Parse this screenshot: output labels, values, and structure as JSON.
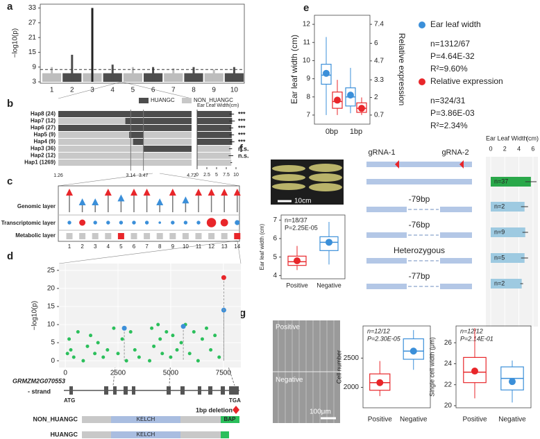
{
  "panels": [
    "a",
    "b",
    "c",
    "d",
    "e",
    "f",
    "g"
  ],
  "panel_a": {
    "type": "manhattan",
    "ylabel": "−log10(p)",
    "ylim": [
      3,
      34
    ],
    "yticks": [
      3,
      9,
      15,
      21,
      27,
      33
    ],
    "categories": [
      1,
      2,
      3,
      4,
      5,
      6,
      7,
      8,
      9,
      10
    ],
    "values": [
      9,
      14,
      33,
      10,
      9,
      9,
      8.5,
      9,
      8,
      9
    ],
    "threshold": 8,
    "colors": [
      "#bdbdbd",
      "#4d4d4d"
    ]
  },
  "panel_b": {
    "legend": [
      "HUANGC",
      "NON_HUANGC"
    ],
    "legend_colors": [
      "#4d4d4d",
      "#c8c8c8"
    ],
    "title": "Ear Leaf Width(cm)",
    "haplotypes": [
      "Hap8 (24)",
      "Hap7 (12)",
      "Hap6 (27)",
      "Hap5 (9)",
      "Hap4 (9)",
      "Hap3 (36)",
      "Hap2 (12)",
      "Hap1 (1269)"
    ],
    "segments": [
      [
        [
          1.26,
          4.72,
          0
        ]
      ],
      [
        [
          1.26,
          3.0,
          1
        ],
        [
          3.0,
          4.72,
          0
        ]
      ],
      [
        [
          1.26,
          4.72,
          0
        ]
      ],
      [
        [
          1.26,
          3.1,
          1
        ],
        [
          3.1,
          3.47,
          0
        ],
        [
          3.47,
          4.72,
          1
        ]
      ],
      [
        [
          1.26,
          3.2,
          1
        ],
        [
          3.2,
          3.47,
          0
        ],
        [
          3.47,
          4.72,
          1
        ]
      ],
      [
        [
          1.26,
          3.47,
          1
        ],
        [
          3.47,
          4.72,
          0
        ]
      ],
      [
        [
          1.26,
          4.72,
          1
        ]
      ],
      [
        [
          1.26,
          4.72,
          1
        ]
      ]
    ],
    "xlim": [
      1.26,
      4.72
    ],
    "positions": [
      1.26,
      3.14,
      3.47,
      4.72
    ],
    "values": [
      8.9,
      9.0,
      8.8,
      8.9,
      9.0,
      8.6,
      8.7,
      8.8
    ],
    "errors": [
      0.6,
      0.7,
      0.5,
      0.6,
      0.6,
      0.4,
      0.6,
      0.2
    ],
    "bar_colors": [
      0,
      0,
      0,
      0,
      0,
      1,
      1,
      1
    ],
    "significance": [
      "***",
      "***",
      "***",
      "***",
      "***",
      "n.s.",
      "n.s.",
      ""
    ],
    "bar_xlim": [
      0,
      10
    ],
    "bar_xticks": [
      0,
      2.5,
      5,
      7.5,
      10
    ]
  },
  "panel_c": {
    "rows": [
      "Genomic layer",
      "Transcriptomic layer",
      "Metabolic layer"
    ],
    "columns": [
      1,
      2,
      3,
      4,
      5,
      6,
      7,
      8,
      9,
      10,
      11,
      12,
      13,
      14
    ],
    "genomic_size": [
      1,
      0.5,
      0.5,
      1,
      0.7,
      1,
      1,
      0.5,
      1,
      0.6,
      1,
      1,
      1,
      1
    ],
    "genomic_color": [
      "#e8262a",
      "#3b8fd9",
      "#3b8fd9",
      "#e8262a",
      "#3b8fd9",
      "#e8262a",
      "#e8262a",
      "#3b8fd9",
      "#e8262a",
      "#3b8fd9",
      "#e8262a",
      "#e8262a",
      "#e8262a",
      "#e8262a"
    ],
    "transcriptomic_size": [
      0.6,
      1,
      0.6,
      0.6,
      0.6,
      0.6,
      0.6,
      0.4,
      0.6,
      0.6,
      0.6,
      1.5,
      1.2,
      0.8
    ],
    "metabolic_color": [
      "#c8c8c8",
      "#c8c8c8",
      "#c8c8c8",
      "#c8c8c8",
      "#e8262a",
      "#c8c8c8",
      "#c8c8c8",
      "#c8c8c8",
      "#c8c8c8",
      "#c8c8c8",
      "#c8c8c8",
      "#c8c8c8",
      "#c8c8c8",
      "#e8262a"
    ]
  },
  "panel_d": {
    "type": "scatter",
    "ylabel": "−log10(p)",
    "xlim": [
      -300,
      8330
    ],
    "xticks": [
      0,
      2500,
      5000,
      7500
    ],
    "ylim": [
      -1.5,
      26.5
    ],
    "yticks": [
      0,
      5,
      10,
      15,
      20,
      25
    ],
    "series": [
      {
        "color": "#2bbf5b",
        "x": [
          100,
          180,
          260,
          400,
          600,
          850,
          1050,
          1200,
          1400,
          1550,
          1800,
          2000,
          2300,
          2500,
          2700,
          2900,
          3100,
          3300,
          3500,
          4000,
          4100,
          4200,
          4400,
          4500,
          4600,
          4800,
          5000,
          5100,
          5300,
          5500,
          5700,
          5900,
          6100,
          6300,
          6500,
          6700,
          6900,
          7100,
          7300
        ],
        "values": [
          2,
          6,
          3,
          1,
          8,
          0,
          4,
          7,
          2,
          5,
          1,
          3,
          9,
          2,
          6,
          0,
          8,
          3,
          1,
          0,
          9,
          4,
          10,
          6,
          2,
          8,
          1,
          7,
          3,
          5,
          10,
          2,
          8,
          0,
          6,
          9,
          3,
          7,
          1
        ]
      },
      {
        "color": "#3b8fd9",
        "x": [
          2800,
          5600,
          7520
        ],
        "values": [
          9,
          9.5,
          14
        ]
      },
      {
        "color": "#e8262a",
        "x": [
          7520
        ],
        "values": [
          23
        ]
      }
    ],
    "gene": "GRMZM2G070553",
    "strand": "- strand",
    "start": "ATG",
    "stop": "TGA",
    "deletion": "1bp deletion",
    "alleles": [
      "NON_HUANGC",
      "HUANGC"
    ],
    "domains": [
      "KELCH",
      "BAP"
    ]
  },
  "panel_e": {
    "type": "box",
    "ylabel": "Ear leaf width (cm)",
    "y2label": "Relative expression",
    "ylim": [
      6.5,
      12.5
    ],
    "yticks": [
      7,
      8,
      9,
      10,
      11,
      12
    ],
    "y2lim": [
      0.03,
      8.07
    ],
    "y2ticks": [
      0.7,
      2,
      3.3,
      4.7,
      6,
      7.4
    ],
    "categories": [
      "0bp",
      "1bp"
    ],
    "series": [
      {
        "name": "Ear leaf width",
        "color": "#3b8fd9",
        "boxes": [
          {
            "min": 7,
            "q1": 8.7,
            "median": 9.2,
            "q3": 9.8,
            "max": 11.3,
            "mean": 9.3
          },
          {
            "min": 7.1,
            "q1": 7.5,
            "median": 8,
            "q3": 8.5,
            "max": 9.6,
            "mean": 8.1
          }
        ],
        "stats": [
          "n=1312/67",
          "P=4.64E-32",
          "R²=9.60%"
        ]
      },
      {
        "name": "Relative expression",
        "color": "#e8262a",
        "axis": "y2",
        "boxes": [
          {
            "min": 0.7,
            "q1": 1.2,
            "median": 1.7,
            "q3": 2.4,
            "max": 3.3,
            "mean": 1.8
          },
          {
            "min": 0.7,
            "q1": 0.9,
            "median": 1.2,
            "q3": 1.6,
            "max": 2.0,
            "mean": 1.2
          }
        ],
        "stats": [
          "n=324/31",
          "P=3.86E-03",
          "R²=2.34%"
        ]
      }
    ]
  },
  "panel_f": {
    "scale": "10cm",
    "box": {
      "ylabel": "Ear leaf width (cm)",
      "ylim": [
        3.9,
        7.2
      ],
      "yticks": [
        4,
        5,
        6,
        7
      ],
      "categories": [
        "Positive",
        "Negative"
      ],
      "colors": [
        "#e8262a",
        "#3b8fd9"
      ],
      "boxes": [
        {
          "min": 4.3,
          "q1": 4.55,
          "median": 4.75,
          "q3": 5.05,
          "max": 5.6,
          "mean": 4.8
        },
        {
          "min": 4.6,
          "q1": 5.35,
          "median": 5.8,
          "q3": 6.1,
          "max": 6.9,
          "mean": 5.8
        }
      ],
      "stats": [
        "n=18/37",
        "P=2.25E-05"
      ]
    },
    "guides": [
      "gRNA-1",
      "gRNA-2"
    ],
    "alleles": [
      "-79bp",
      "-76bp",
      "Heterozygous",
      "-77bp"
    ],
    "bars": {
      "title": "Ear  Leaf  Width",
      "unit": "(cm)",
      "xlim": [
        0,
        6.6
      ],
      "xticks": [
        0,
        2,
        4,
        6
      ],
      "values": [
        5.7,
        4.8,
        4.9,
        4.8,
        4.4
      ],
      "errors": [
        0.8,
        0.5,
        0.4,
        0.5,
        0.2
      ],
      "labels": [
        "n=37",
        "n=2",
        "n=9",
        "n=5",
        "n=2"
      ],
      "colors": [
        "#2aa84a",
        "#9ecae1",
        "#9ecae1",
        "#9ecae1",
        "#9ecae1"
      ]
    }
  },
  "panel_g": {
    "image_labels": [
      "Positive",
      "Negative"
    ],
    "scale": "100μm",
    "categories": [
      "Positive",
      "Negative"
    ],
    "colors": [
      "#e8262a",
      "#3b8fd9"
    ],
    "plots": [
      {
        "ylabel": "Cell number",
        "ylim": [
          1650,
          3050
        ],
        "yticks": [
          2000,
          2500
        ],
        "boxes": [
          {
            "min": 1850,
            "q1": 1950,
            "median": 2080,
            "q3": 2230,
            "max": 2450,
            "mean": 2080
          },
          {
            "min": 2300,
            "q1": 2480,
            "median": 2620,
            "q3": 2830,
            "max": 2980,
            "mean": 2620
          }
        ],
        "stats": [
          "n=12/12",
          "P=2.30E-05"
        ]
      },
      {
        "ylabel": "Single cell width (μm)",
        "ylim": [
          19.8,
          27.6
        ],
        "yticks": [
          20,
          22,
          24,
          26
        ],
        "boxes": [
          {
            "min": 20.7,
            "q1": 22.2,
            "median": 23.2,
            "q3": 24.6,
            "max": 27.4,
            "mean": 23.3
          },
          {
            "min": 20.3,
            "q1": 21.5,
            "median": 22.6,
            "q3": 23.7,
            "max": 24.3,
            "mean": 22.3
          }
        ],
        "stats": [
          "n=12/12",
          "P=2.14E-01"
        ]
      }
    ]
  }
}
